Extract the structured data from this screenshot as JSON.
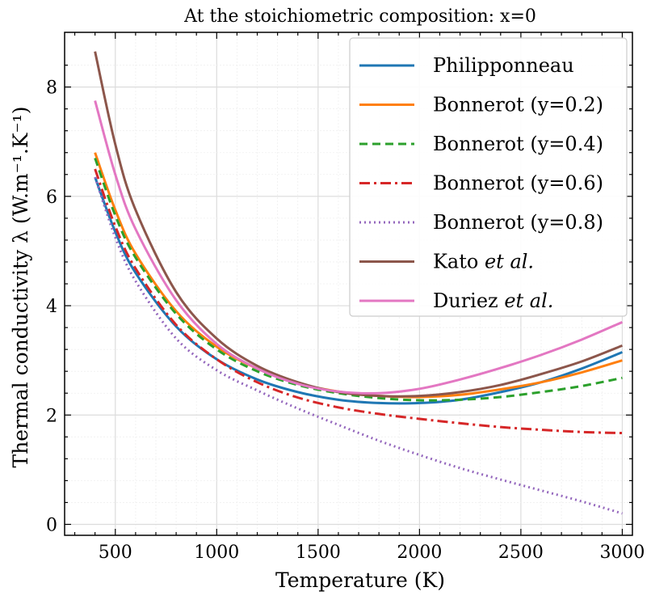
{
  "chart_data": {
    "type": "line",
    "title": "At the stoichiometric composition: x=0",
    "xlabel": "Temperature (K)",
    "ylabel": "Thermal conductivity λ (W.m⁻¹.K⁻¹)",
    "xlim": [
      250,
      3050
    ],
    "ylim": [
      -0.2,
      9.0
    ],
    "xticks": [
      500,
      1000,
      1500,
      2000,
      2500,
      3000
    ],
    "yticks": [
      0,
      2,
      4,
      6,
      8
    ],
    "xtick_labels": [
      "500",
      "1000",
      "1500",
      "2000",
      "2500",
      "3000"
    ],
    "ytick_labels": [
      "0",
      "2",
      "4",
      "6",
      "8"
    ],
    "grid": true,
    "legend_position": "top-right",
    "series": [
      {
        "name": "Philipponneau",
        "color": "#1f77b4",
        "dash": "solid",
        "x": [
          400,
          500,
          600,
          800,
          1000,
          1200,
          1400,
          1600,
          1800,
          2000,
          2200,
          2400,
          2600,
          2800,
          3000
        ],
        "y": [
          6.35,
          5.35,
          4.6,
          3.62,
          3.02,
          2.65,
          2.42,
          2.28,
          2.22,
          2.22,
          2.28,
          2.42,
          2.6,
          2.85,
          3.15
        ]
      },
      {
        "name": "Bonnerot (y=0.2)",
        "color": "#ff7f0e",
        "dash": "solid",
        "x": [
          400,
          500,
          600,
          800,
          1000,
          1200,
          1400,
          1600,
          1800,
          2000,
          2200,
          2400,
          2600,
          2800,
          3000
        ],
        "y": [
          6.8,
          5.75,
          4.95,
          3.9,
          3.25,
          2.85,
          2.58,
          2.43,
          2.35,
          2.33,
          2.37,
          2.47,
          2.6,
          2.78,
          3.0
        ]
      },
      {
        "name": "Bonnerot (y=0.4)",
        "color": "#2ca02c",
        "dash": "dashed",
        "x": [
          400,
          500,
          600,
          800,
          1000,
          1200,
          1400,
          1600,
          1800,
          2000,
          2200,
          2400,
          2600,
          2800,
          3000
        ],
        "y": [
          6.7,
          5.65,
          4.88,
          3.85,
          3.2,
          2.8,
          2.55,
          2.4,
          2.31,
          2.27,
          2.28,
          2.33,
          2.42,
          2.53,
          2.68
        ]
      },
      {
        "name": "Bonnerot (y=0.6)",
        "color": "#d62728",
        "dash": "dashdot",
        "x": [
          400,
          500,
          600,
          800,
          1000,
          1200,
          1400,
          1600,
          1800,
          2000,
          2200,
          2400,
          2600,
          2800,
          3000
        ],
        "y": [
          6.5,
          5.45,
          4.68,
          3.65,
          3.02,
          2.6,
          2.32,
          2.14,
          2.02,
          1.93,
          1.85,
          1.78,
          1.73,
          1.69,
          1.67
        ]
      },
      {
        "name": "Bonnerot (y=0.8)",
        "color": "#9467bd",
        "dash": "dotted",
        "x": [
          400,
          500,
          600,
          800,
          1000,
          1200,
          1400,
          1600,
          1800,
          2000,
          2200,
          2400,
          2600,
          2800,
          3000
        ],
        "y": [
          6.35,
          5.25,
          4.45,
          3.4,
          2.82,
          2.45,
          2.12,
          1.82,
          1.53,
          1.27,
          1.03,
          0.82,
          0.62,
          0.42,
          0.2
        ]
      },
      {
        "name": "Kato et al.",
        "color": "#8c564b",
        "dash": "solid",
        "x": [
          400,
          500,
          600,
          800,
          1000,
          1200,
          1400,
          1600,
          1800,
          2000,
          2200,
          2400,
          2600,
          2800,
          3000
        ],
        "y": [
          8.65,
          6.95,
          5.75,
          4.25,
          3.4,
          2.9,
          2.6,
          2.42,
          2.35,
          2.35,
          2.42,
          2.55,
          2.75,
          2.98,
          3.27
        ]
      },
      {
        "name": "Duriez et al.",
        "color": "#e377c2",
        "dash": "solid",
        "x": [
          400,
          500,
          600,
          800,
          1000,
          1200,
          1400,
          1600,
          1800,
          2000,
          2200,
          2400,
          2600,
          2800,
          3000
        ],
        "y": [
          7.75,
          6.4,
          5.4,
          4.1,
          3.3,
          2.85,
          2.57,
          2.43,
          2.4,
          2.48,
          2.65,
          2.86,
          3.1,
          3.38,
          3.7
        ]
      }
    ],
    "legend": [
      {
        "main": "Philipponneau",
        "italic": ""
      },
      {
        "main": "Bonnerot (y=0.2)",
        "italic": ""
      },
      {
        "main": "Bonnerot (y=0.4)",
        "italic": ""
      },
      {
        "main": "Bonnerot (y=0.6)",
        "italic": ""
      },
      {
        "main": "Bonnerot (y=0.8)",
        "italic": ""
      },
      {
        "main": "Kato ",
        "italic": "et al."
      },
      {
        "main": "Duriez ",
        "italic": "et al."
      }
    ]
  }
}
